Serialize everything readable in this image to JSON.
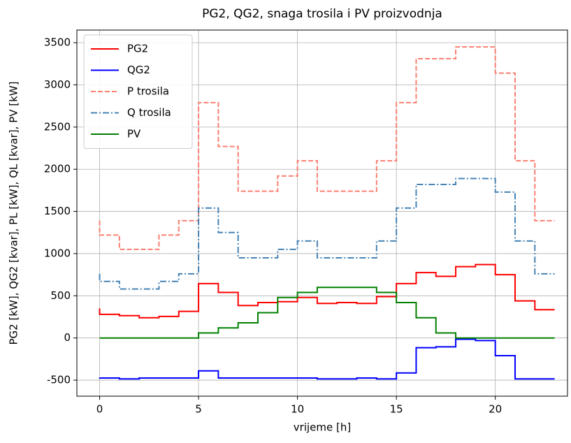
{
  "chart_data": {
    "type": "step",
    "step": "pre",
    "title": "PG2, QG2, snaga trosila i PV proizvodnja",
    "xlabel": "vrijeme [h]",
    "ylabel": "PG2 [kW], QG2 [kvar], PL [kW], QL [kvar], PV [kW]",
    "x": [
      0,
      1,
      2,
      3,
      4,
      5,
      6,
      7,
      8,
      9,
      10,
      11,
      12,
      13,
      14,
      15,
      16,
      17,
      18,
      19,
      20,
      21,
      22,
      23
    ],
    "series": [
      {
        "name": "PG2",
        "color": "#ff0000",
        "dash": "solid",
        "values": [
          350,
          280,
          265,
          240,
          255,
          315,
          645,
          540,
          385,
          420,
          430,
          480,
          410,
          420,
          410,
          490,
          645,
          775,
          730,
          845,
          870,
          750,
          440,
          335
        ]
      },
      {
        "name": "QG2",
        "color": "#0000ff",
        "dash": "solid",
        "values": [
          -470,
          -475,
          -485,
          -475,
          -475,
          -475,
          -390,
          -475,
          -475,
          -475,
          -475,
          -475,
          -485,
          -485,
          -475,
          -485,
          -415,
          -115,
          -105,
          -15,
          -30,
          -210,
          -485,
          -485
        ]
      },
      {
        "name": "P trosila",
        "color": "#fa8072",
        "dash": "dashed",
        "values": [
          1390,
          1220,
          1050,
          1050,
          1220,
          1390,
          2790,
          2270,
          1740,
          1740,
          1920,
          2100,
          1740,
          1740,
          1740,
          2100,
          2790,
          3310,
          3310,
          3450,
          3450,
          3140,
          2100,
          1390
        ]
      },
      {
        "name": "Q trosila",
        "color": "#4682b4",
        "dash": "dashdot",
        "values": [
          760,
          670,
          580,
          580,
          670,
          760,
          1540,
          1250,
          950,
          950,
          1050,
          1150,
          950,
          950,
          950,
          1150,
          1540,
          1820,
          1820,
          1890,
          1890,
          1730,
          1150,
          760
        ]
      },
      {
        "name": "PV",
        "color": "#008000",
        "dash": "solid",
        "values": [
          0,
          0,
          0,
          0,
          0,
          0,
          60,
          120,
          180,
          300,
          480,
          540,
          600,
          600,
          600,
          540,
          420,
          240,
          60,
          0,
          0,
          0,
          0,
          0
        ]
      }
    ],
    "xlim": [
      -1.15,
      23.65
    ],
    "ylim": [
      -690,
      3650
    ],
    "xticks": [
      0,
      5,
      10,
      15,
      20
    ],
    "yticks": [
      -500,
      0,
      500,
      1000,
      1500,
      2000,
      2500,
      3000,
      3500
    ],
    "grid": true,
    "legend": "upper left"
  }
}
